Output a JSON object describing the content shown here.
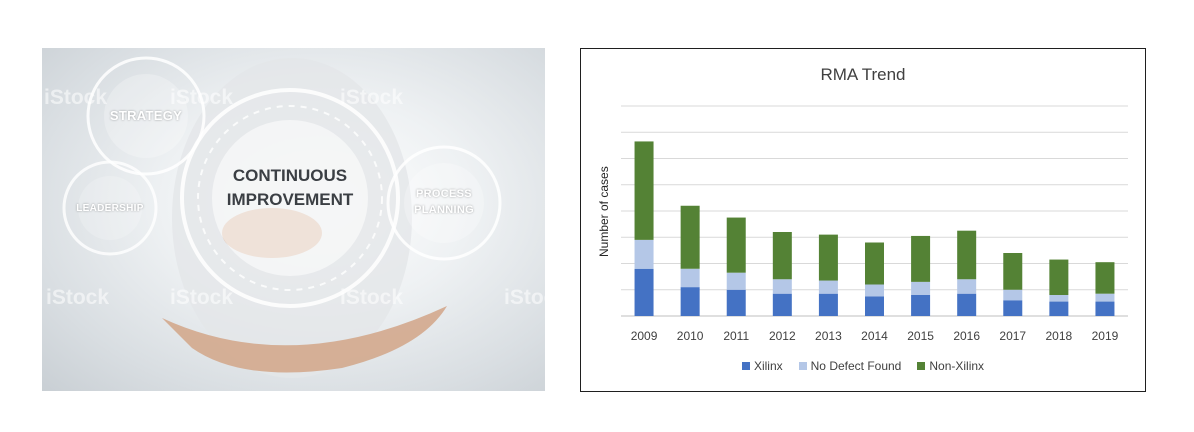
{
  "photo": {
    "gears": [
      "STRATEGY",
      "LEADERSHIP",
      "PROCESS PLANNING"
    ],
    "main_label_line1": "CONTINUOUS",
    "main_label_line2": "IMPROVEMENT",
    "watermark": "iStock"
  },
  "chart_data": {
    "type": "bar",
    "stacked": true,
    "title": "RMA Trend",
    "xlabel": "",
    "ylabel": "Number of cases",
    "categories": [
      "2009",
      "2010",
      "2011",
      "2012",
      "2013",
      "2014",
      "2015",
      "2016",
      "2017",
      "2018",
      "2019"
    ],
    "series": [
      {
        "name": "Xilinx",
        "color": "#4472c4",
        "values": [
          18,
          11,
          10,
          8.5,
          8.5,
          7.5,
          8,
          8.5,
          6,
          5.5,
          5.5
        ]
      },
      {
        "name": "No Defect Found",
        "color": "#b4c7e7",
        "values": [
          11,
          7,
          6.5,
          5.5,
          5,
          4.5,
          5,
          5.5,
          4,
          2.5,
          3
        ]
      },
      {
        "name": "Non-Xilinx",
        "color": "#548235",
        "values": [
          37.5,
          24,
          21,
          18,
          17.5,
          16,
          17.5,
          18.5,
          14,
          13.5,
          12
        ]
      }
    ],
    "ylim": [
      0,
      80
    ],
    "grid": true,
    "legend_position": "bottom"
  }
}
